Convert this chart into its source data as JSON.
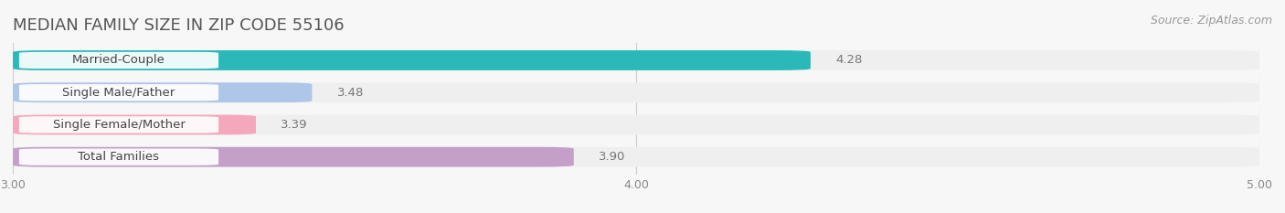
{
  "title": "MEDIAN FAMILY SIZE IN ZIP CODE 55106",
  "source": "Source: ZipAtlas.com",
  "categories": [
    "Married-Couple",
    "Single Male/Father",
    "Single Female/Mother",
    "Total Families"
  ],
  "values": [
    4.28,
    3.48,
    3.39,
    3.9
  ],
  "bar_colors": [
    "#2ab8b8",
    "#aec6e8",
    "#f5a8bc",
    "#c4a0c8"
  ],
  "value_labels": [
    "4.28",
    "3.48",
    "3.39",
    "3.90"
  ],
  "value_label_colors": [
    "#5a9aaa",
    "#5a7a9a",
    "#a07080",
    "#8a70a0"
  ],
  "xlim_min": 3.0,
  "xlim_max": 5.0,
  "xticks": [
    3.0,
    4.0,
    5.0
  ],
  "xtick_labels": [
    "3.00",
    "4.00",
    "5.00"
  ],
  "bar_height": 0.62,
  "track_color": "#efefef",
  "background_color": "#f7f7f7",
  "title_fontsize": 13,
  "source_fontsize": 9,
  "label_fontsize": 9.5,
  "value_fontsize": 9.5,
  "tick_fontsize": 9
}
